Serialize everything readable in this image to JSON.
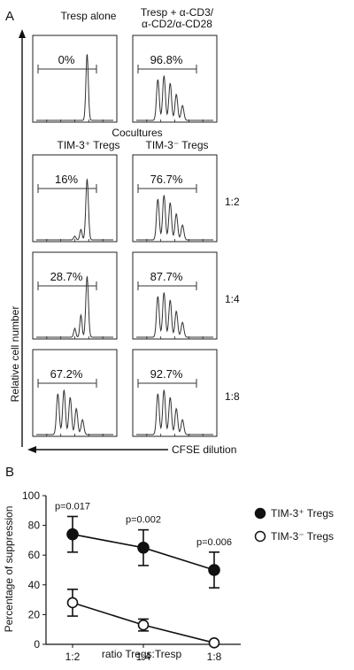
{
  "panel_a": {
    "letter": "A",
    "header_tresp_alone": "Tresp alone",
    "header_stim_line1": "Tresp + α-CD3/",
    "header_stim_line2": "α-CD2/α-CD28",
    "cocultures_title": "Cocultures",
    "col_pos": "TIM-3⁺ Tregs",
    "col_neg": "TIM-3⁻ Tregs",
    "ratios": [
      "1:2",
      "1:4",
      "1:8"
    ],
    "y_axis_label": "Relative cell number",
    "x_axis_label": "CFSE dilution"
  },
  "panel_b": {
    "letter": "B"
  },
  "chart_data": [
    {
      "type": "histogram",
      "panel": "A",
      "ylabel": "Relative cell number",
      "xlabel": "CFSE dilution",
      "histograms": [
        {
          "label": "0%",
          "value": 0,
          "row": "top",
          "column": "Tresp alone",
          "peaks": 1
        },
        {
          "label": "96.8%",
          "value": 96.8,
          "row": "top",
          "column": "Tresp + α-CD3/α-CD2/α-CD28",
          "peaks": 5
        },
        {
          "label": "16%",
          "value": 16,
          "row": "1:2",
          "column": "TIM-3⁺ Tregs",
          "peaks": 2
        },
        {
          "label": "76.7%",
          "value": 76.7,
          "row": "1:2",
          "column": "TIM-3⁻ Tregs",
          "peaks": 5
        },
        {
          "label": "28.7%",
          "value": 28.7,
          "row": "1:4",
          "column": "TIM-3⁺ Tregs",
          "peaks": 3
        },
        {
          "label": "87.7%",
          "value": 87.7,
          "row": "1:4",
          "column": "TIM-3⁻ Tregs",
          "peaks": 5
        },
        {
          "label": "67.2%",
          "value": 67.2,
          "row": "1:8",
          "column": "TIM-3⁺ Tregs",
          "peaks": 5
        },
        {
          "label": "92.7%",
          "value": 92.7,
          "row": "1:8",
          "column": "TIM-3⁻ Tregs",
          "peaks": 5
        }
      ]
    },
    {
      "type": "line",
      "panel": "B",
      "xlabel": "ratio Tregs:Tresp",
      "ylabel": "Percentage of suppression",
      "categories": [
        "1:2",
        "1:4",
        "1:8"
      ],
      "ylim": [
        0,
        100
      ],
      "yticks": [
        0,
        20,
        40,
        60,
        80,
        100
      ],
      "series": [
        {
          "name": "TIM-3⁺ Tregs",
          "marker": "filled-circle",
          "values": [
            74,
            65,
            50
          ],
          "errors": [
            12,
            12,
            12
          ]
        },
        {
          "name": "TIM-3⁻ Tregs",
          "marker": "open-circle",
          "values": [
            28,
            13,
            1
          ],
          "errors": [
            9,
            4,
            0
          ]
        }
      ],
      "annotations": [
        "p=0.017",
        "p=0.002",
        "p=0.006"
      ],
      "grid": false,
      "legend": "right"
    }
  ]
}
